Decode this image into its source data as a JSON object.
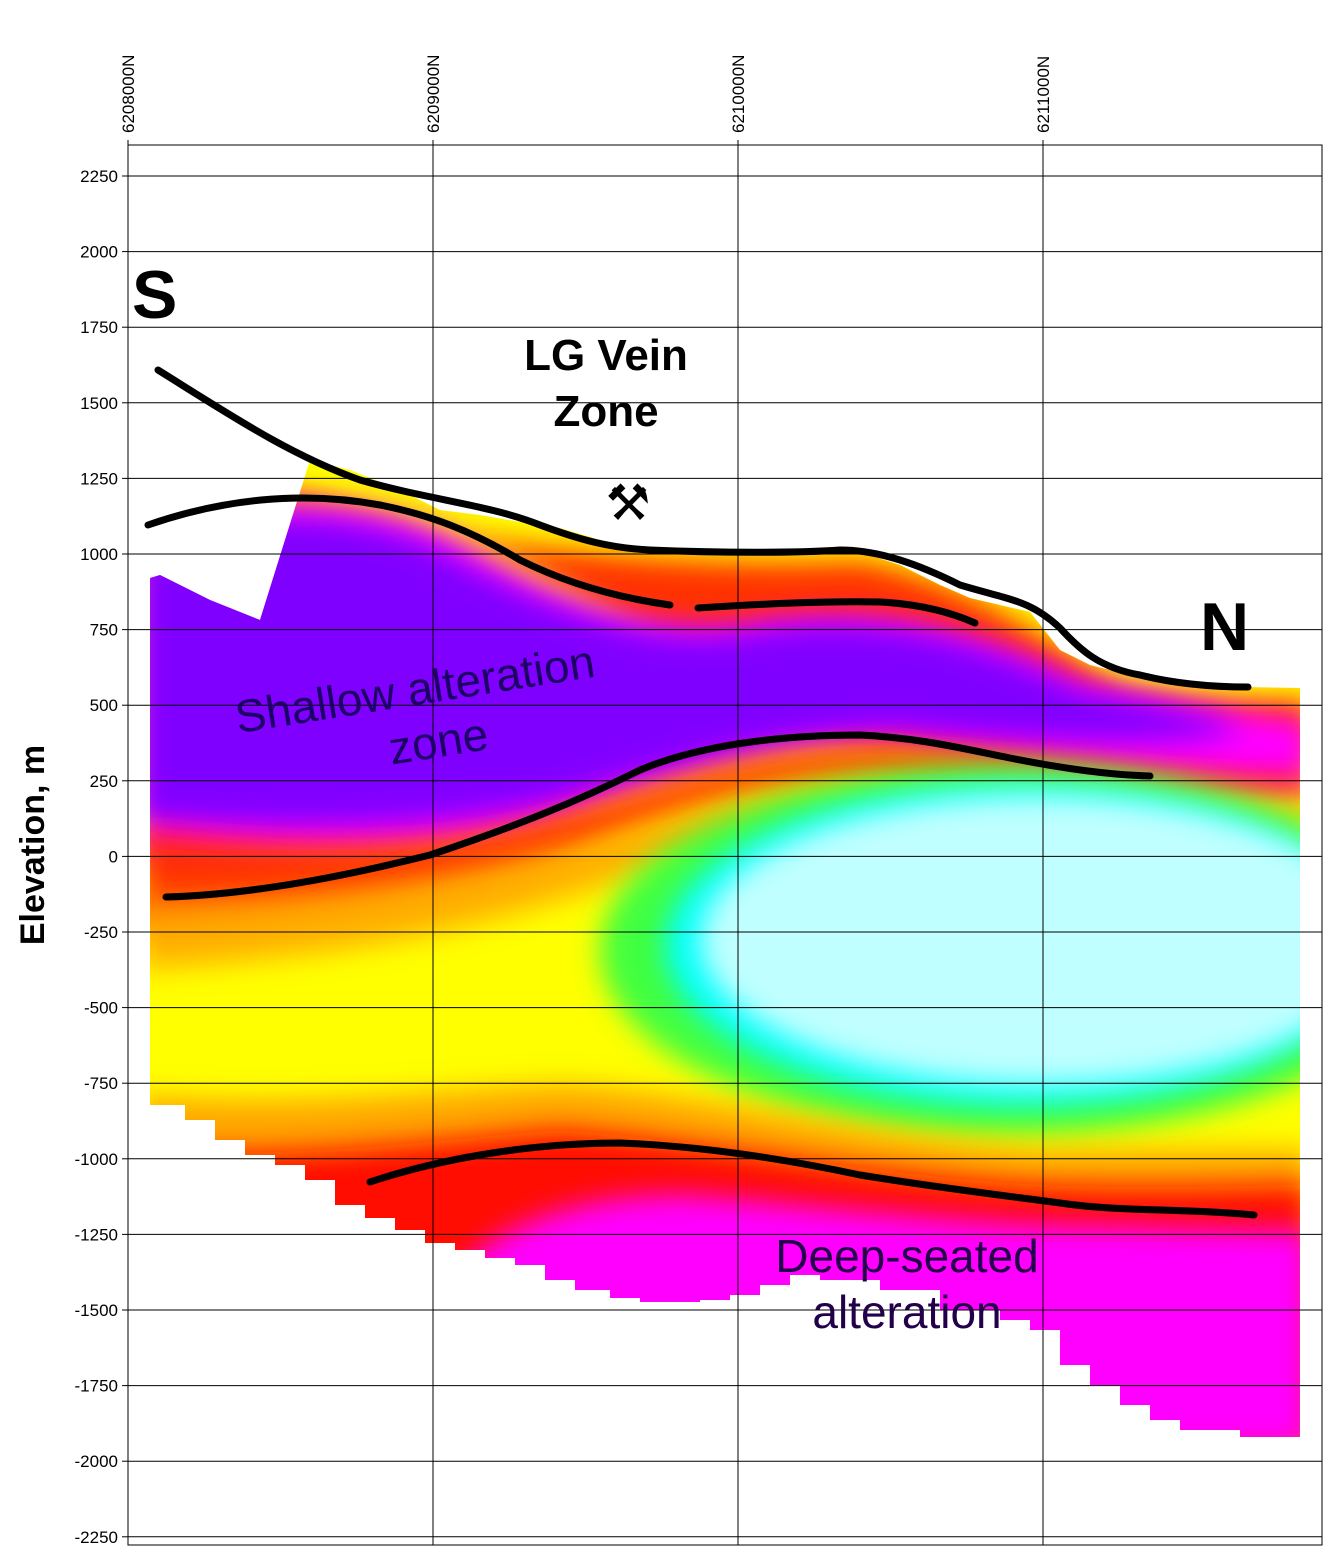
{
  "section": {
    "northing_ticks": [
      {
        "id": "n1",
        "label": "6208000N"
      },
      {
        "id": "n2",
        "label": "6209000N"
      },
      {
        "id": "n3",
        "label": "6210000N"
      },
      {
        "id": "n4",
        "label": "6211000N"
      }
    ],
    "elevation_ticks": [
      {
        "id": "e2250",
        "label": "2250"
      },
      {
        "id": "e2000",
        "label": "2000"
      },
      {
        "id": "e1750",
        "label": "1750"
      },
      {
        "id": "e1500",
        "label": "1500"
      },
      {
        "id": "e1250",
        "label": "1250"
      },
      {
        "id": "e1000",
        "label": "1000"
      },
      {
        "id": "e750",
        "label": "750"
      },
      {
        "id": "e500",
        "label": "500"
      },
      {
        "id": "e250",
        "label": "250"
      },
      {
        "id": "e0",
        "label": "0"
      },
      {
        "id": "em250",
        "label": "-250"
      },
      {
        "id": "em500",
        "label": "-500"
      },
      {
        "id": "em750",
        "label": "-750"
      },
      {
        "id": "em1000",
        "label": "-1000"
      },
      {
        "id": "em1250",
        "label": "-1250"
      },
      {
        "id": "em1500",
        "label": "-1500"
      },
      {
        "id": "em1750",
        "label": "-1750"
      },
      {
        "id": "em2000",
        "label": "-2000"
      },
      {
        "id": "em2250",
        "label": "-2250"
      }
    ],
    "y_axis_label": "Elevation, m",
    "south_label": "S",
    "north_label": "N",
    "vein_zone": {
      "line1": "LG Vein",
      "line2": "Zone",
      "icon": "mine-pick-hammer-icon",
      "glyph": "⚒"
    },
    "shallow_zone": {
      "line1": "Shallow alteration",
      "line2": "zone"
    },
    "deep_zone": {
      "line1": "Deep-seated",
      "line2": "alteration"
    },
    "colors": {
      "magenta": "#ff00ff",
      "purple": "#8000ff",
      "red": "#ff0000",
      "orange": "#ffa500",
      "yellow": "#ffff00",
      "green": "#40ff40",
      "cyan": "#00ffff",
      "pale_cyan": "#c0ffff",
      "boundary": "#000000"
    }
  }
}
